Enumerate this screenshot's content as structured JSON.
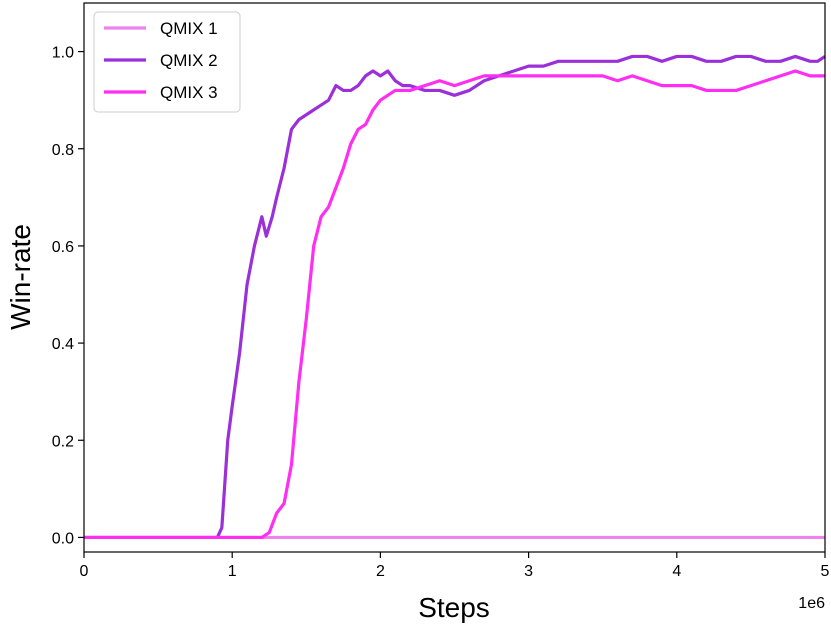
{
  "chart_data": {
    "type": "line",
    "xlabel": "Steps",
    "ylabel": "Win-rate",
    "x_multiplier_label": "1e6",
    "xlim": [
      0,
      5
    ],
    "ylim": [
      -0.03,
      1.1
    ],
    "xticks": [
      0,
      1,
      2,
      3,
      4,
      5
    ],
    "xtick_labels": [
      "0",
      "1",
      "2",
      "3",
      "4",
      "5"
    ],
    "yticks": [
      0.0,
      0.2,
      0.4,
      0.6,
      0.8,
      1.0
    ],
    "ytick_labels": [
      "0.0",
      "0.2",
      "0.4",
      "0.6",
      "0.8",
      "1.0"
    ],
    "grid": false,
    "legend_position": "top-left",
    "series": [
      {
        "name": "QMIX 1",
        "color": "#ee82ee",
        "x": [
          0,
          5
        ],
        "y": [
          0.0,
          0.0
        ]
      },
      {
        "name": "QMIX 2",
        "color": "#9b30d9",
        "x": [
          0,
          0.9,
          0.93,
          0.97,
          1.0,
          1.05,
          1.1,
          1.15,
          1.2,
          1.23,
          1.27,
          1.3,
          1.35,
          1.4,
          1.45,
          1.5,
          1.55,
          1.6,
          1.65,
          1.7,
          1.75,
          1.8,
          1.85,
          1.9,
          1.95,
          2.0,
          2.05,
          2.1,
          2.15,
          2.2,
          2.3,
          2.4,
          2.5,
          2.6,
          2.7,
          2.8,
          2.9,
          3.0,
          3.1,
          3.2,
          3.3,
          3.4,
          3.5,
          3.6,
          3.7,
          3.8,
          3.9,
          4.0,
          4.1,
          4.2,
          4.3,
          4.4,
          4.5,
          4.6,
          4.7,
          4.8,
          4.9,
          4.95,
          5.0
        ],
        "y": [
          0.0,
          0.0,
          0.02,
          0.2,
          0.27,
          0.38,
          0.52,
          0.6,
          0.66,
          0.62,
          0.66,
          0.7,
          0.76,
          0.84,
          0.86,
          0.87,
          0.88,
          0.89,
          0.9,
          0.93,
          0.92,
          0.92,
          0.93,
          0.95,
          0.96,
          0.95,
          0.96,
          0.94,
          0.93,
          0.93,
          0.92,
          0.92,
          0.91,
          0.92,
          0.94,
          0.95,
          0.96,
          0.97,
          0.97,
          0.98,
          0.98,
          0.98,
          0.98,
          0.98,
          0.99,
          0.99,
          0.98,
          0.99,
          0.99,
          0.98,
          0.98,
          0.99,
          0.99,
          0.98,
          0.98,
          0.99,
          0.98,
          0.98,
          0.99
        ]
      },
      {
        "name": "QMIX 3",
        "color": "#ff2ef2",
        "x": [
          0,
          0.95,
          1.1,
          1.2,
          1.25,
          1.3,
          1.35,
          1.4,
          1.45,
          1.5,
          1.55,
          1.6,
          1.65,
          1.7,
          1.75,
          1.8,
          1.85,
          1.9,
          1.95,
          2.0,
          2.05,
          2.1,
          2.2,
          2.3,
          2.4,
          2.5,
          2.6,
          2.7,
          2.8,
          2.9,
          3.0,
          3.1,
          3.2,
          3.3,
          3.4,
          3.5,
          3.6,
          3.7,
          3.8,
          3.9,
          4.0,
          4.1,
          4.2,
          4.3,
          4.4,
          4.5,
          4.6,
          4.7,
          4.8,
          4.9,
          5.0
        ],
        "y": [
          0.0,
          0.0,
          0.0,
          0.0,
          0.01,
          0.05,
          0.07,
          0.15,
          0.32,
          0.45,
          0.6,
          0.66,
          0.68,
          0.72,
          0.76,
          0.81,
          0.84,
          0.85,
          0.88,
          0.9,
          0.91,
          0.92,
          0.92,
          0.93,
          0.94,
          0.93,
          0.94,
          0.95,
          0.95,
          0.95,
          0.95,
          0.95,
          0.95,
          0.95,
          0.95,
          0.95,
          0.94,
          0.95,
          0.94,
          0.93,
          0.93,
          0.93,
          0.92,
          0.92,
          0.92,
          0.93,
          0.94,
          0.95,
          0.96,
          0.95,
          0.95
        ]
      }
    ]
  }
}
